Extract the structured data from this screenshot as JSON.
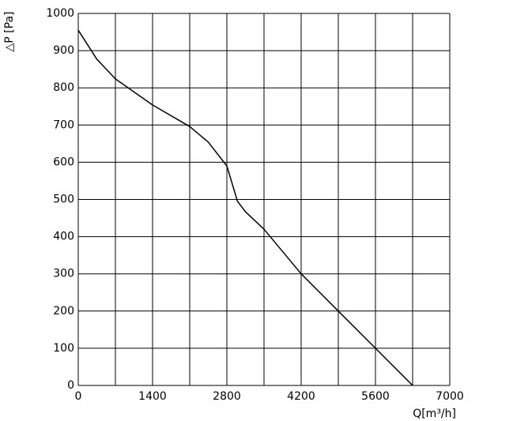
{
  "chart_data": {
    "type": "line",
    "x_label": "Q[m³/h]",
    "y_label": "△P [Pa]",
    "xlim": [
      0,
      7000
    ],
    "xticks": [
      0,
      1400,
      2800,
      4200,
      5600,
      7000
    ],
    "xgrid": [
      0,
      700,
      1400,
      2100,
      2800,
      3500,
      4200,
      4900,
      5600,
      6300,
      7000
    ],
    "ylim": [
      0,
      1000
    ],
    "yticks": [
      0,
      100,
      200,
      300,
      400,
      500,
      600,
      700,
      800,
      900,
      1000
    ],
    "grid": true,
    "series": [
      {
        "color": "#000000",
        "x": [
          0,
          350,
          700,
          1400,
          2100,
          2450,
          2800,
          3000,
          3150,
          3500,
          4200,
          4900,
          5600,
          6300
        ],
        "values": [
          955,
          877,
          824,
          754,
          696,
          654,
          590,
          495,
          467,
          420,
          300,
          200,
          100,
          0
        ]
      }
    ]
  }
}
